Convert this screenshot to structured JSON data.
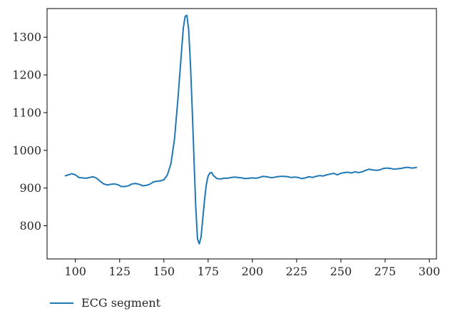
{
  "chart_data": {
    "type": "line",
    "title": "",
    "xlabel": "",
    "ylabel": "",
    "xlim": [
      84,
      304
    ],
    "ylim": [
      712,
      1376
    ],
    "xticks": [
      100,
      125,
      150,
      175,
      200,
      225,
      250,
      275,
      300
    ],
    "yticks": [
      800,
      900,
      1000,
      1100,
      1200,
      1300
    ],
    "grid": false,
    "legend_position": "bottom-left, below axes",
    "series": [
      {
        "name": "ECG segment",
        "color": "#1f77b4",
        "points": [
          [
            94,
            932
          ],
          [
            96,
            935
          ],
          [
            98,
            938
          ],
          [
            100,
            935
          ],
          [
            102,
            928
          ],
          [
            104,
            927
          ],
          [
            106,
            926
          ],
          [
            108,
            928
          ],
          [
            110,
            930
          ],
          [
            112,
            926
          ],
          [
            114,
            918
          ],
          [
            116,
            911
          ],
          [
            118,
            908
          ],
          [
            120,
            910
          ],
          [
            122,
            911
          ],
          [
            124,
            909
          ],
          [
            126,
            904
          ],
          [
            128,
            904
          ],
          [
            130,
            906
          ],
          [
            132,
            911
          ],
          [
            134,
            912
          ],
          [
            136,
            910
          ],
          [
            138,
            906
          ],
          [
            140,
            907
          ],
          [
            142,
            910
          ],
          [
            144,
            916
          ],
          [
            146,
            918
          ],
          [
            148,
            919
          ],
          [
            150,
            922
          ],
          [
            152,
            935
          ],
          [
            154,
            965
          ],
          [
            156,
            1030
          ],
          [
            158,
            1140
          ],
          [
            160,
            1265
          ],
          [
            161,
            1325
          ],
          [
            162,
            1355
          ],
          [
            163,
            1358
          ],
          [
            164,
            1320
          ],
          [
            165,
            1230
          ],
          [
            166,
            1110
          ],
          [
            167,
            980
          ],
          [
            168,
            850
          ],
          [
            169,
            765
          ],
          [
            170,
            752
          ],
          [
            171,
            770
          ],
          [
            172,
            820
          ],
          [
            173,
            870
          ],
          [
            174,
            910
          ],
          [
            175,
            932
          ],
          [
            176,
            940
          ],
          [
            177,
            941
          ],
          [
            178,
            933
          ],
          [
            180,
            925
          ],
          [
            182,
            924
          ],
          [
            184,
            926
          ],
          [
            186,
            926
          ],
          [
            188,
            928
          ],
          [
            190,
            929
          ],
          [
            192,
            928
          ],
          [
            194,
            927
          ],
          [
            196,
            925
          ],
          [
            198,
            926
          ],
          [
            200,
            927
          ],
          [
            202,
            926
          ],
          [
            204,
            928
          ],
          [
            206,
            931
          ],
          [
            208,
            930
          ],
          [
            210,
            928
          ],
          [
            212,
            928
          ],
          [
            214,
            930
          ],
          [
            216,
            931
          ],
          [
            218,
            931
          ],
          [
            220,
            930
          ],
          [
            222,
            928
          ],
          [
            224,
            929
          ],
          [
            226,
            928
          ],
          [
            228,
            925
          ],
          [
            230,
            927
          ],
          [
            232,
            930
          ],
          [
            234,
            928
          ],
          [
            236,
            931
          ],
          [
            238,
            933
          ],
          [
            240,
            932
          ],
          [
            242,
            935
          ],
          [
            244,
            937
          ],
          [
            246,
            939
          ],
          [
            248,
            935
          ],
          [
            250,
            939
          ],
          [
            252,
            941
          ],
          [
            254,
            942
          ],
          [
            256,
            940
          ],
          [
            258,
            943
          ],
          [
            260,
            941
          ],
          [
            262,
            943
          ],
          [
            264,
            947
          ],
          [
            266,
            950
          ],
          [
            268,
            948
          ],
          [
            270,
            947
          ],
          [
            272,
            948
          ],
          [
            274,
            952
          ],
          [
            276,
            953
          ],
          [
            278,
            952
          ],
          [
            280,
            950
          ],
          [
            282,
            951
          ],
          [
            284,
            952
          ],
          [
            286,
            954
          ],
          [
            288,
            955
          ],
          [
            290,
            953
          ],
          [
            292,
            954
          ],
          [
            293,
            955
          ]
        ]
      }
    ]
  }
}
